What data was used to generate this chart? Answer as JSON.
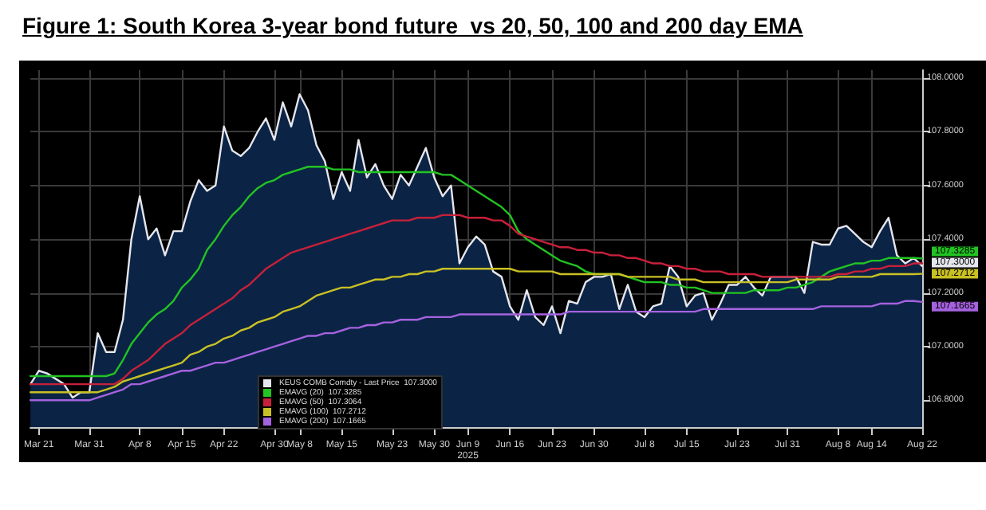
{
  "chart_data": {
    "type": "line",
    "title": "Figure 1: South Korea 3-year bond future  vs 20, 50, 100 and 200 day EMA",
    "categories": [
      null,
      "Mar 21",
      null,
      null,
      null,
      null,
      null,
      "Mar 31",
      null,
      null,
      null,
      null,
      null,
      "Apr 8",
      null,
      null,
      null,
      null,
      "Apr 15",
      null,
      null,
      null,
      null,
      "Apr 22",
      null,
      null,
      null,
      null,
      null,
      "Apr 30",
      null,
      null,
      "May 8",
      null,
      null,
      null,
      null,
      "May 15",
      null,
      null,
      null,
      null,
      null,
      "May 23",
      null,
      null,
      null,
      null,
      "May 30",
      null,
      null,
      null,
      "Jun 9\n2025",
      null,
      null,
      null,
      null,
      "Jun 16",
      null,
      null,
      null,
      null,
      "Jun 23",
      null,
      null,
      null,
      null,
      "Jun 30",
      null,
      null,
      null,
      null,
      null,
      "Jul 8",
      null,
      null,
      null,
      null,
      "Jul 15",
      null,
      null,
      null,
      null,
      null,
      "Jul 23",
      null,
      null,
      null,
      null,
      null,
      "Jul 31",
      null,
      null,
      null,
      null,
      null,
      "Aug 8",
      null,
      null,
      null,
      "Aug 14",
      null,
      null,
      null,
      null,
      null,
      "Aug 22"
    ],
    "series": [
      {
        "name": "KEUS COMB Comdty - Last Price  107.3000",
        "type": "area",
        "color": "#e6e6ee",
        "values": [
          106.86,
          106.91,
          106.9,
          106.88,
          106.86,
          106.81,
          106.83,
          106.83,
          107.05,
          106.98,
          106.98,
          107.1,
          107.4,
          107.56,
          107.4,
          107.44,
          107.34,
          107.43,
          107.43,
          107.54,
          107.62,
          107.58,
          107.6,
          107.82,
          107.73,
          107.71,
          107.74,
          107.8,
          107.85,
          107.77,
          107.91,
          107.82,
          107.94,
          107.88,
          107.75,
          107.69,
          107.55,
          107.65,
          107.58,
          107.77,
          107.63,
          107.68,
          107.6,
          107.55,
          107.64,
          107.6,
          107.67,
          107.74,
          107.63,
          107.56,
          107.6,
          107.31,
          107.37,
          107.41,
          107.38,
          107.28,
          107.26,
          107.15,
          107.1,
          107.21,
          107.11,
          107.08,
          107.15,
          107.05,
          107.17,
          107.16,
          107.24,
          107.26,
          107.26,
          107.27,
          107.14,
          107.23,
          107.13,
          107.11,
          107.15,
          107.16,
          107.3,
          107.26,
          107.15,
          107.19,
          107.2,
          107.1,
          107.16,
          107.23,
          107.23,
          107.26,
          107.22,
          107.19,
          107.26,
          107.26,
          107.26,
          107.26,
          107.2,
          107.39,
          107.38,
          107.38,
          107.44,
          107.45,
          107.42,
          107.39,
          107.37,
          107.43,
          107.48,
          107.34,
          107.31,
          107.33,
          107.3
        ],
        "value_labels": [
          null,
          null,
          null,
          null,
          null,
          null,
          null,
          null,
          null,
          null,
          null,
          null,
          null,
          null,
          null,
          null,
          null,
          null,
          null,
          null,
          null,
          null,
          null,
          null,
          null,
          null,
          null,
          null,
          null,
          null,
          null,
          null,
          null,
          null,
          null,
          null,
          null,
          null,
          null,
          null,
          null,
          null,
          null,
          null,
          null,
          null,
          null,
          null,
          null,
          null,
          null,
          null,
          null,
          null,
          null,
          null,
          null,
          null,
          null,
          null,
          null,
          null,
          null,
          null,
          null,
          null,
          null,
          null,
          null,
          null,
          null,
          null,
          null,
          null,
          null,
          null,
          null,
          null,
          null,
          null,
          null,
          null,
          null,
          null,
          null,
          null,
          null,
          null,
          null,
          null,
          null,
          null,
          null,
          null,
          null,
          null,
          null,
          null,
          null,
          null,
          null,
          null,
          null,
          null,
          null,
          null,
          "107.3000"
        ]
      },
      {
        "name": "EMAVG (20)  107.3285",
        "color": "#22c322",
        "values": [
          106.89,
          106.89,
          106.89,
          106.89,
          106.89,
          106.89,
          106.89,
          106.89,
          106.89,
          106.89,
          106.9,
          106.95,
          107.01,
          107.05,
          107.09,
          107.12,
          107.14,
          107.17,
          107.22,
          107.25,
          107.29,
          107.36,
          107.4,
          107.45,
          107.49,
          107.52,
          107.56,
          107.59,
          107.61,
          107.62,
          107.64,
          107.65,
          107.66,
          107.67,
          107.67,
          107.67,
          107.66,
          107.66,
          107.66,
          107.65,
          107.65,
          107.65,
          107.65,
          107.65,
          107.65,
          107.65,
          107.65,
          107.65,
          107.65,
          107.64,
          107.64,
          107.62,
          107.6,
          107.58,
          107.56,
          107.54,
          107.52,
          107.49,
          107.43,
          107.4,
          107.38,
          107.36,
          107.34,
          107.32,
          107.31,
          107.3,
          107.28,
          107.27,
          107.27,
          107.27,
          107.27,
          107.26,
          107.25,
          107.24,
          107.24,
          107.24,
          107.23,
          107.23,
          107.22,
          107.22,
          107.21,
          107.2,
          107.2,
          107.2,
          107.2,
          107.2,
          107.21,
          107.21,
          107.21,
          107.21,
          107.22,
          107.22,
          107.23,
          107.24,
          107.26,
          107.28,
          107.29,
          107.3,
          107.31,
          107.31,
          107.32,
          107.32,
          107.33,
          107.33,
          107.33,
          107.33,
          107.3285
        ],
        "value_labels": [
          null,
          null,
          null,
          null,
          null,
          null,
          null,
          null,
          null,
          null,
          null,
          null,
          null,
          null,
          null,
          null,
          null,
          null,
          null,
          null,
          null,
          null,
          null,
          null,
          null,
          null,
          null,
          null,
          null,
          null,
          null,
          null,
          null,
          null,
          null,
          null,
          null,
          null,
          null,
          null,
          null,
          null,
          null,
          null,
          null,
          null,
          null,
          null,
          null,
          null,
          null,
          null,
          null,
          null,
          null,
          null,
          null,
          null,
          null,
          null,
          null,
          null,
          null,
          null,
          null,
          null,
          null,
          null,
          null,
          null,
          null,
          null,
          null,
          null,
          null,
          null,
          null,
          null,
          null,
          null,
          null,
          null,
          null,
          null,
          null,
          null,
          null,
          null,
          null,
          null,
          null,
          null,
          null,
          null,
          null,
          null,
          null,
          null,
          null,
          null,
          null,
          null,
          null,
          null,
          null,
          null,
          "107.3285"
        ]
      },
      {
        "name": "EMAVG (50)  107.3064",
        "color": "#c8203a",
        "values": [
          106.86,
          106.86,
          106.86,
          106.86,
          106.86,
          106.86,
          106.86,
          106.86,
          106.86,
          106.86,
          106.86,
          106.88,
          106.91,
          106.93,
          106.95,
          106.98,
          107.01,
          107.03,
          107.05,
          107.08,
          107.1,
          107.12,
          107.14,
          107.16,
          107.18,
          107.21,
          107.23,
          107.26,
          107.29,
          107.31,
          107.33,
          107.35,
          107.36,
          107.37,
          107.38,
          107.39,
          107.4,
          107.41,
          107.42,
          107.43,
          107.44,
          107.45,
          107.46,
          107.47,
          107.47,
          107.47,
          107.48,
          107.48,
          107.48,
          107.49,
          107.49,
          107.49,
          107.48,
          107.48,
          107.48,
          107.47,
          107.47,
          107.45,
          107.42,
          107.41,
          107.4,
          107.39,
          107.38,
          107.37,
          107.37,
          107.36,
          107.36,
          107.35,
          107.35,
          107.34,
          107.34,
          107.33,
          107.33,
          107.32,
          107.31,
          107.31,
          107.3,
          107.3,
          107.29,
          107.29,
          107.28,
          107.28,
          107.28,
          107.27,
          107.27,
          107.27,
          107.27,
          107.26,
          107.26,
          107.26,
          107.26,
          107.26,
          107.26,
          107.26,
          107.26,
          107.26,
          107.27,
          107.27,
          107.28,
          107.28,
          107.29,
          107.29,
          107.3,
          107.3,
          107.3,
          107.31,
          107.31
        ]
      },
      {
        "name": "EMAVG (100)  107.2712",
        "color": "#c9c124",
        "values": [
          106.83,
          106.83,
          106.83,
          106.83,
          106.83,
          106.83,
          106.83,
          106.83,
          106.83,
          106.84,
          106.85,
          106.87,
          106.88,
          106.89,
          106.9,
          106.91,
          106.92,
          106.93,
          106.94,
          106.97,
          106.98,
          107.0,
          107.01,
          107.03,
          107.04,
          107.06,
          107.07,
          107.09,
          107.1,
          107.11,
          107.13,
          107.14,
          107.15,
          107.17,
          107.19,
          107.2,
          107.21,
          107.22,
          107.22,
          107.23,
          107.24,
          107.25,
          107.25,
          107.26,
          107.26,
          107.27,
          107.27,
          107.28,
          107.28,
          107.29,
          107.29,
          107.29,
          107.29,
          107.29,
          107.29,
          107.29,
          107.29,
          107.29,
          107.28,
          107.28,
          107.28,
          107.28,
          107.28,
          107.27,
          107.27,
          107.27,
          107.27,
          107.27,
          107.27,
          107.27,
          107.27,
          107.26,
          107.26,
          107.26,
          107.26,
          107.26,
          107.26,
          107.25,
          107.25,
          107.25,
          107.24,
          107.24,
          107.24,
          107.24,
          107.24,
          107.24,
          107.24,
          107.24,
          107.24,
          107.24,
          107.24,
          107.25,
          107.25,
          107.25,
          107.25,
          107.25,
          107.26,
          107.26,
          107.26,
          107.26,
          107.26,
          107.27,
          107.27,
          107.27,
          107.27,
          107.27,
          107.2712
        ],
        "value_labels": [
          null,
          null,
          null,
          null,
          null,
          null,
          null,
          null,
          null,
          null,
          null,
          null,
          null,
          null,
          null,
          null,
          null,
          null,
          null,
          null,
          null,
          null,
          null,
          null,
          null,
          null,
          null,
          null,
          null,
          null,
          null,
          null,
          null,
          null,
          null,
          null,
          null,
          null,
          null,
          null,
          null,
          null,
          null,
          null,
          null,
          null,
          null,
          null,
          null,
          null,
          null,
          null,
          null,
          null,
          null,
          null,
          null,
          null,
          null,
          null,
          null,
          null,
          null,
          null,
          null,
          null,
          null,
          null,
          null,
          null,
          null,
          null,
          null,
          null,
          null,
          null,
          null,
          null,
          null,
          null,
          null,
          null,
          null,
          null,
          null,
          null,
          null,
          null,
          null,
          null,
          null,
          null,
          null,
          null,
          null,
          null,
          null,
          null,
          null,
          null,
          null,
          null,
          null,
          null,
          null,
          null,
          "107.2712"
        ]
      },
      {
        "name": "EMAVG (200)  107.1665",
        "color": "#a562e0",
        "values": [
          106.8,
          106.8,
          106.8,
          106.8,
          106.8,
          106.8,
          106.8,
          106.8,
          106.81,
          106.82,
          106.83,
          106.84,
          106.86,
          106.86,
          106.87,
          106.88,
          106.89,
          106.9,
          106.91,
          106.91,
          106.92,
          106.93,
          106.94,
          106.94,
          106.95,
          106.96,
          106.97,
          106.98,
          106.99,
          107.0,
          107.01,
          107.02,
          107.03,
          107.04,
          107.04,
          107.05,
          107.05,
          107.06,
          107.07,
          107.07,
          107.08,
          107.08,
          107.09,
          107.09,
          107.1,
          107.1,
          107.1,
          107.11,
          107.11,
          107.11,
          107.11,
          107.12,
          107.12,
          107.12,
          107.12,
          107.12,
          107.12,
          107.12,
          107.12,
          107.12,
          107.12,
          107.12,
          107.12,
          107.12,
          107.13,
          107.13,
          107.13,
          107.13,
          107.13,
          107.13,
          107.13,
          107.13,
          107.13,
          107.13,
          107.13,
          107.13,
          107.13,
          107.13,
          107.13,
          107.13,
          107.14,
          107.14,
          107.14,
          107.14,
          107.14,
          107.14,
          107.14,
          107.14,
          107.14,
          107.14,
          107.14,
          107.14,
          107.14,
          107.14,
          107.15,
          107.15,
          107.15,
          107.15,
          107.15,
          107.15,
          107.15,
          107.16,
          107.16,
          107.16,
          107.17,
          107.17,
          107.1665
        ],
        "value_labels": [
          null,
          null,
          null,
          null,
          null,
          null,
          null,
          null,
          null,
          null,
          null,
          null,
          null,
          null,
          null,
          null,
          null,
          null,
          null,
          null,
          null,
          null,
          null,
          null,
          null,
          null,
          null,
          null,
          null,
          null,
          null,
          null,
          null,
          null,
          null,
          null,
          null,
          null,
          null,
          null,
          null,
          null,
          null,
          null,
          null,
          null,
          null,
          null,
          null,
          null,
          null,
          null,
          null,
          null,
          null,
          null,
          null,
          null,
          null,
          null,
          null,
          null,
          null,
          null,
          null,
          null,
          null,
          null,
          null,
          null,
          null,
          null,
          null,
          null,
          null,
          null,
          null,
          null,
          null,
          null,
          null,
          null,
          null,
          null,
          null,
          null,
          null,
          null,
          null,
          null,
          null,
          null,
          null,
          null,
          null,
          null,
          null,
          null,
          null,
          null,
          null,
          null,
          null,
          null,
          null,
          null,
          "107.1665"
        ]
      }
    ],
    "ylim": [
      106.7,
      108.03
    ],
    "yticks": [
      {
        "value": 106.8,
        "label": "106.8000"
      },
      {
        "value": 107.0,
        "label": "107.0000"
      },
      {
        "value": 107.2,
        "label": "107.2000"
      },
      {
        "value": 107.4,
        "label": "107.4000"
      },
      {
        "value": 107.6,
        "label": "107.6000"
      },
      {
        "value": 107.8,
        "label": "107.8000"
      },
      {
        "value": 108.0,
        "label": "108.0000"
      }
    ],
    "grid": true,
    "legend": "bottom left",
    "line_style": "solid"
  }
}
